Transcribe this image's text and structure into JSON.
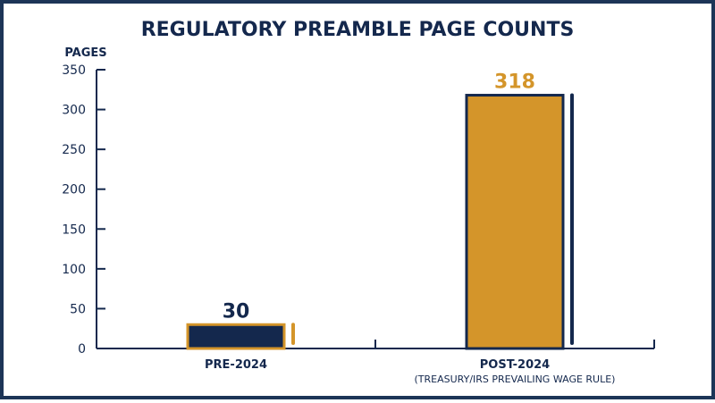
{
  "colors": {
    "navy": "#14284d",
    "gold": "#d4952a",
    "border": "#1d3557",
    "background": "#ffffff"
  },
  "chart_data": {
    "type": "bar",
    "title": "REGULATORY PREAMBLE PAGE COUNTS",
    "ylabel": "PAGES",
    "xlabel": "",
    "ylim": [
      0,
      350
    ],
    "yticks": [
      0,
      50,
      100,
      150,
      200,
      250,
      300,
      350
    ],
    "grid": false,
    "categories": [
      {
        "label": "PRE-2024",
        "sublabel": ""
      },
      {
        "label": "POST-2024",
        "sublabel": "(TREASURY/IRS PREVAILING WAGE RULE)"
      }
    ],
    "values": [
      30,
      318
    ],
    "data_labels": [
      "30",
      "318"
    ],
    "bar_colors": [
      "#14284d",
      "#d4952a"
    ],
    "label_colors": [
      "#14284d",
      "#d4952a"
    ]
  }
}
